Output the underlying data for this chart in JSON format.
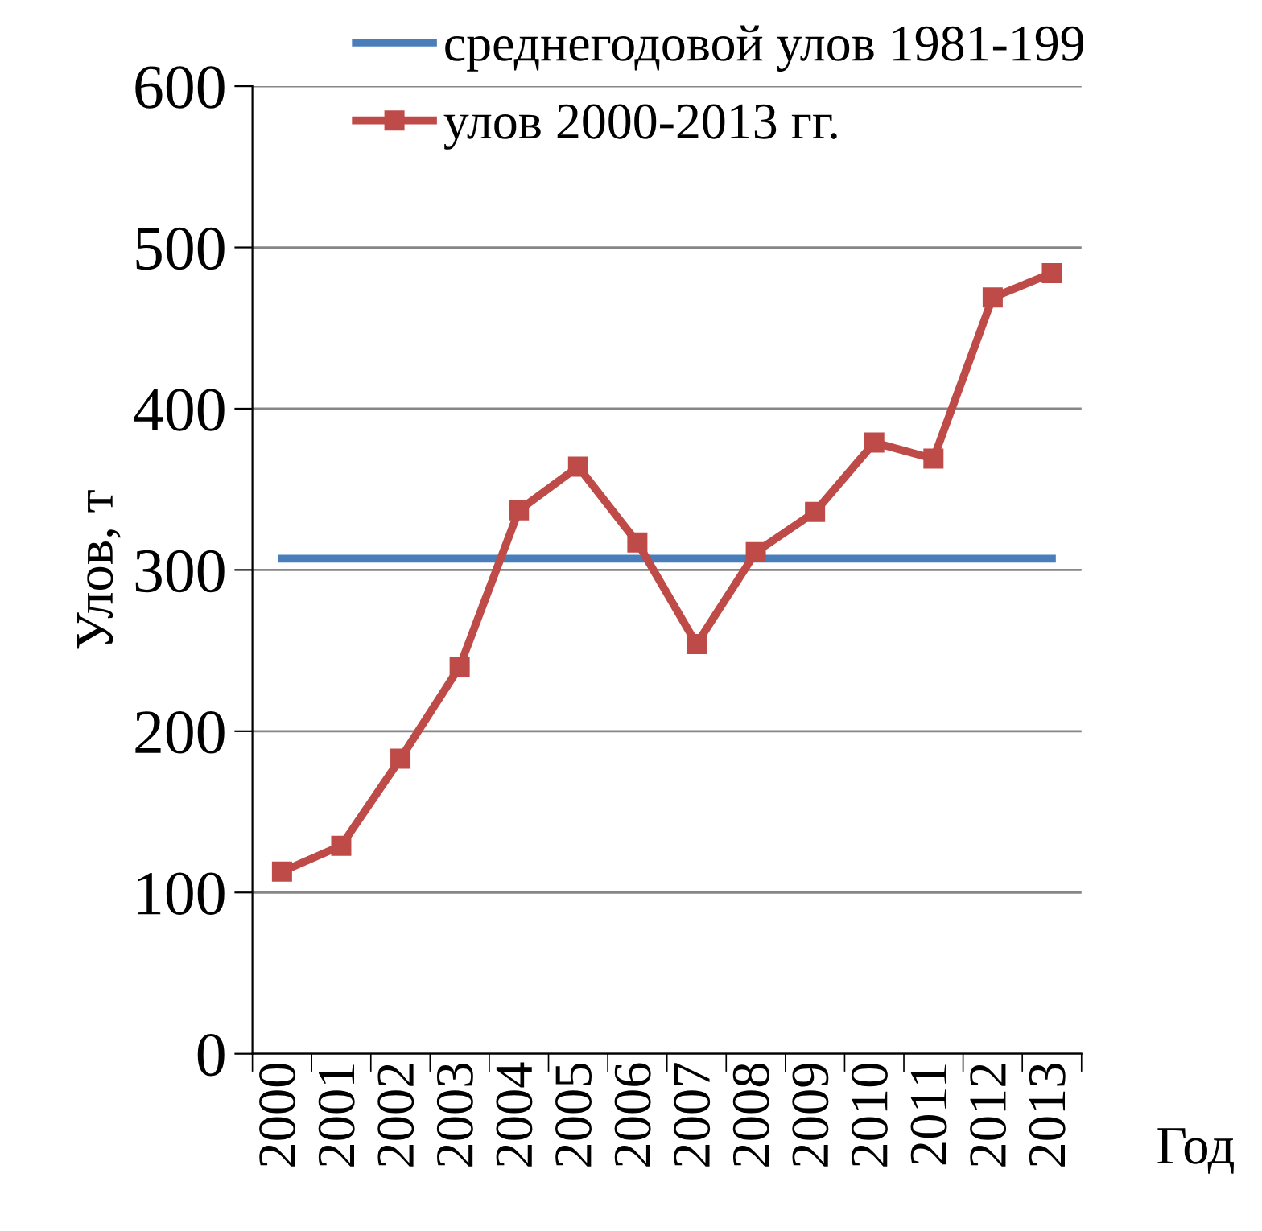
{
  "chart_data": {
    "type": "line",
    "ylabel": "Улов, т",
    "xlabel": "Год",
    "categories": [
      "2000",
      "2001",
      "2002",
      "2003",
      "2004",
      "2005",
      "2006",
      "2007",
      "2008",
      "2009",
      "2010",
      "2011",
      "2012",
      "2013"
    ],
    "series": [
      {
        "name": "среднегодовой улов 1981-199",
        "color": "#4a7ebb",
        "marker": "none",
        "values": [
          307,
          307,
          307,
          307,
          307,
          307,
          307,
          307,
          307,
          307,
          307,
          307,
          307,
          307
        ]
      },
      {
        "name": "улов 2000-2013 гг.",
        "color": "#be4b48",
        "marker": "square",
        "values": [
          113,
          129,
          183,
          240,
          337,
          364,
          317,
          254,
          311,
          336,
          379,
          369,
          469,
          484
        ]
      }
    ],
    "ylim": [
      0,
      600
    ],
    "yticks": [
      0,
      100,
      200,
      300,
      400,
      500,
      600
    ],
    "grid": "y",
    "legend": "top"
  }
}
